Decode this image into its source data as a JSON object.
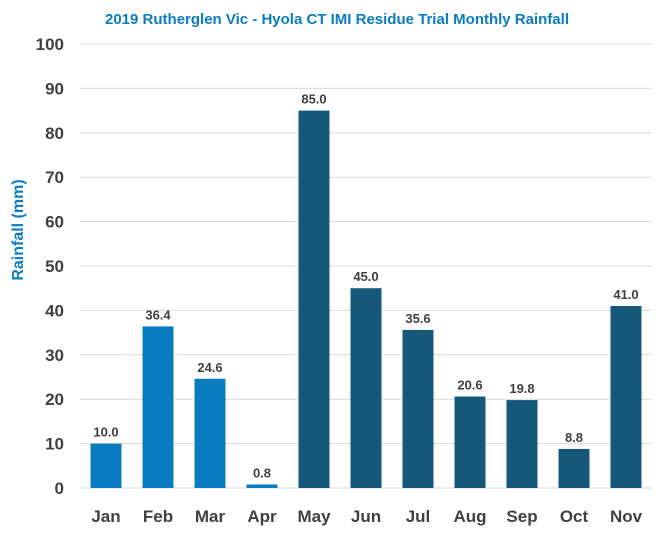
{
  "chart_data": {
    "type": "bar",
    "title": "2019 Rutherglen Vic - Hyola CT IMI Residue Trial Monthly Rainfall",
    "xlabel": "",
    "ylabel": "Rainfall (mm)",
    "ylim": [
      0,
      100
    ],
    "yticks": [
      "0",
      "10",
      "20",
      "30",
      "40",
      "50",
      "60",
      "70",
      "80",
      "90",
      "100"
    ],
    "categories": [
      "Jan",
      "Feb",
      "Mar",
      "Apr",
      "May",
      "Jun",
      "Jul",
      "Aug",
      "Sep",
      "Oct",
      "Nov"
    ],
    "values": [
      10.0,
      36.4,
      24.6,
      0.8,
      85.0,
      45.0,
      35.6,
      20.6,
      19.8,
      8.8,
      41.0
    ],
    "data_labels": [
      "10.0",
      "36.4",
      "24.6",
      "0.8",
      "85.0",
      "45.0",
      "35.6",
      "20.6",
      "19.8",
      "8.8",
      "41.0"
    ],
    "bar_colors": [
      "#0a7dc2",
      "#0a7dc2",
      "#0a7dc2",
      "#0a7dc2",
      "#16587a",
      "#16587a",
      "#16587a",
      "#16587a",
      "#16587a",
      "#16587a",
      "#16587a"
    ],
    "title_color": "#0a7dc2",
    "ylabel_color": "#0a7dc2",
    "grid": true,
    "legend": "none"
  }
}
